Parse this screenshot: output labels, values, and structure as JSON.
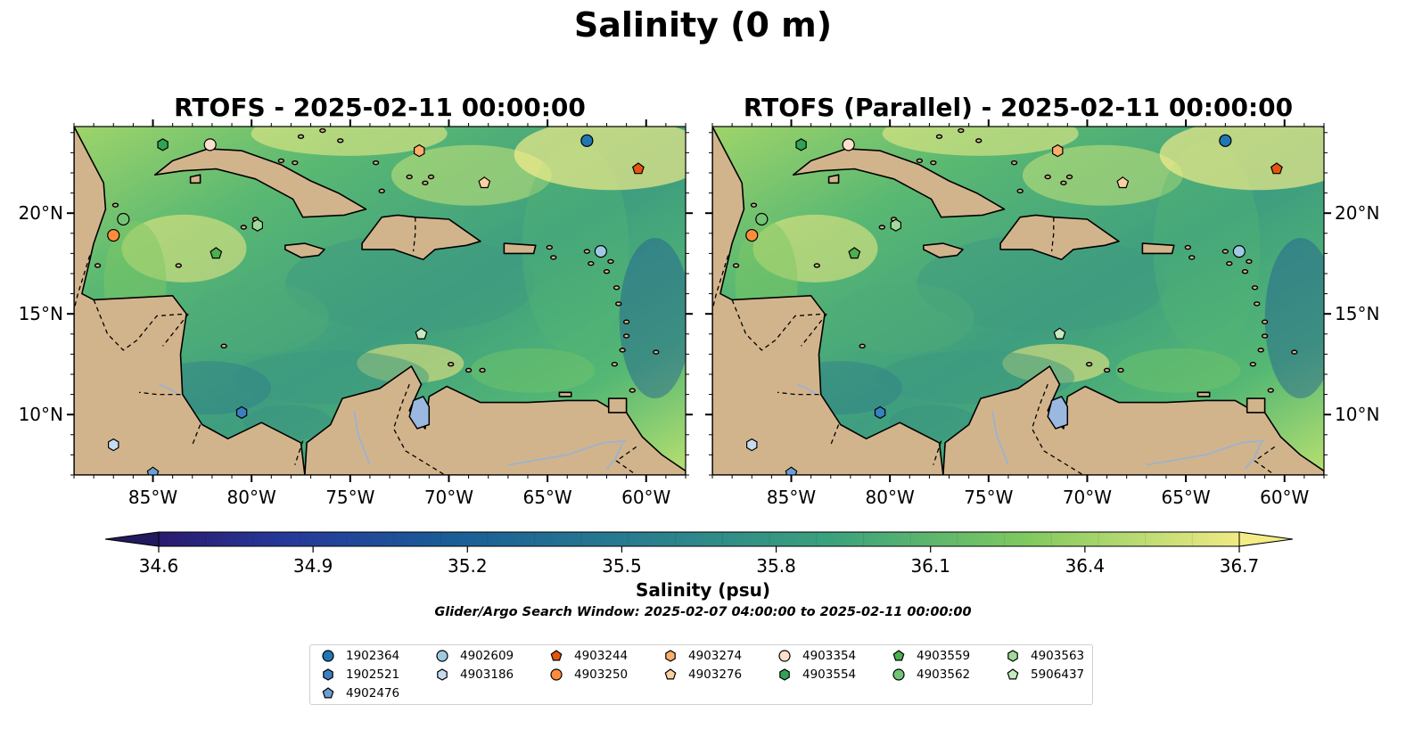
{
  "figure": {
    "suptitle": "Salinity (0 m)",
    "panels": [
      {
        "title": "RTOFS - 2025-02-11 00:00:00"
      },
      {
        "title": "RTOFS (Parallel) - 2025-02-11 00:00:00"
      }
    ],
    "lon_ticks": [
      "85°W",
      "80°W",
      "75°W",
      "70°W",
      "65°W",
      "60°W"
    ],
    "lat_ticks": [
      "20°N",
      "15°N",
      "10°N"
    ],
    "extent": {
      "lon": [
        -89,
        -58
      ],
      "lat": [
        7,
        24.3
      ]
    },
    "land_color": "#d2b48c",
    "ocean_colormap": "haline"
  },
  "colorbar": {
    "label": "Salinity (psu)",
    "ticks": [
      "34.6",
      "34.9",
      "35.2",
      "35.5",
      "35.8",
      "36.1",
      "36.4",
      "36.7"
    ],
    "range": [
      34.6,
      36.7
    ],
    "extend": "both"
  },
  "search_window": "Glider/Argo Search Window: 2025-02-07 04:00:00 to 2025-02-11 00:00:00",
  "legend": {
    "columns": [
      [
        {
          "id": "1902364",
          "marker": "circle",
          "color": "#1f77b4"
        },
        {
          "id": "1902521",
          "marker": "hexagon",
          "color": "#3a7fc0"
        },
        {
          "id": "4902476",
          "marker": "pentagon",
          "color": "#6a9fd4"
        }
      ],
      [
        {
          "id": "4902609",
          "marker": "circle",
          "color": "#9ecae1"
        },
        {
          "id": "4903186",
          "marker": "hexagon",
          "color": "#c6dbef"
        }
      ],
      [
        {
          "id": "4903244",
          "marker": "pentagon",
          "color": "#e6550d"
        },
        {
          "id": "4903250",
          "marker": "circle",
          "color": "#fd8d3c"
        }
      ],
      [
        {
          "id": "4903274",
          "marker": "hexagon",
          "color": "#fdae6b"
        },
        {
          "id": "4903276",
          "marker": "pentagon",
          "color": "#fdd0a2"
        }
      ],
      [
        {
          "id": "4903354",
          "marker": "circle",
          "color": "#fde0cc"
        },
        {
          "id": "4903554",
          "marker": "hexagon",
          "color": "#31a354"
        }
      ],
      [
        {
          "id": "4903559",
          "marker": "pentagon",
          "color": "#4caf50"
        },
        {
          "id": "4903562",
          "marker": "circle",
          "color": "#74c476"
        }
      ],
      [
        {
          "id": "4903563",
          "marker": "hexagon",
          "color": "#a1d99b"
        },
        {
          "id": "5906437",
          "marker": "pentagon",
          "color": "#c7e9c0"
        }
      ]
    ]
  },
  "floats": [
    {
      "id": "1902364",
      "lon": -63.0,
      "lat": 23.6
    },
    {
      "id": "1902521",
      "lon": -80.5,
      "lat": 10.1
    },
    {
      "id": "4902476",
      "lon": -85.0,
      "lat": 7.1
    },
    {
      "id": "4902609",
      "lon": -62.3,
      "lat": 18.1
    },
    {
      "id": "4903186",
      "lon": -87.0,
      "lat": 8.5
    },
    {
      "id": "4903244",
      "lon": -60.4,
      "lat": 22.2
    },
    {
      "id": "4903250",
      "lon": -87.0,
      "lat": 18.9
    },
    {
      "id": "4903274",
      "lon": -71.5,
      "lat": 23.1
    },
    {
      "id": "4903276",
      "lon": -68.2,
      "lat": 21.5
    },
    {
      "id": "4903354",
      "lon": -82.1,
      "lat": 23.4
    },
    {
      "id": "4903554",
      "lon": -84.5,
      "lat": 23.4
    },
    {
      "id": "4903559",
      "lon": -81.8,
      "lat": 18.0
    },
    {
      "id": "4903562",
      "lon": -86.5,
      "lat": 19.7
    },
    {
      "id": "4903563",
      "lon": -79.7,
      "lat": 19.4
    },
    {
      "id": "5906437",
      "lon": -71.4,
      "lat": 14.0
    }
  ]
}
